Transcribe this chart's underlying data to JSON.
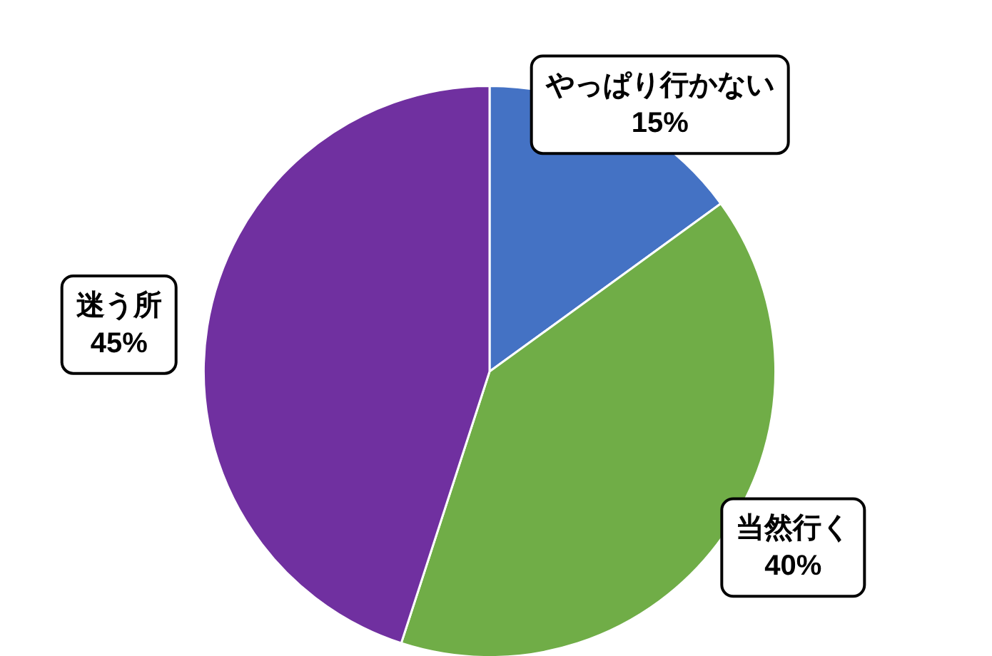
{
  "chart_data": {
    "type": "pie",
    "categories": [
      "やっぱり行かない",
      "当然行く",
      "迷う所"
    ],
    "values": [
      15,
      40,
      45
    ],
    "colors": [
      "#4472c4",
      "#70ad47",
      "#7030a0"
    ],
    "value_labels": [
      "15%",
      "40%",
      "45%"
    ],
    "legend": false
  }
}
